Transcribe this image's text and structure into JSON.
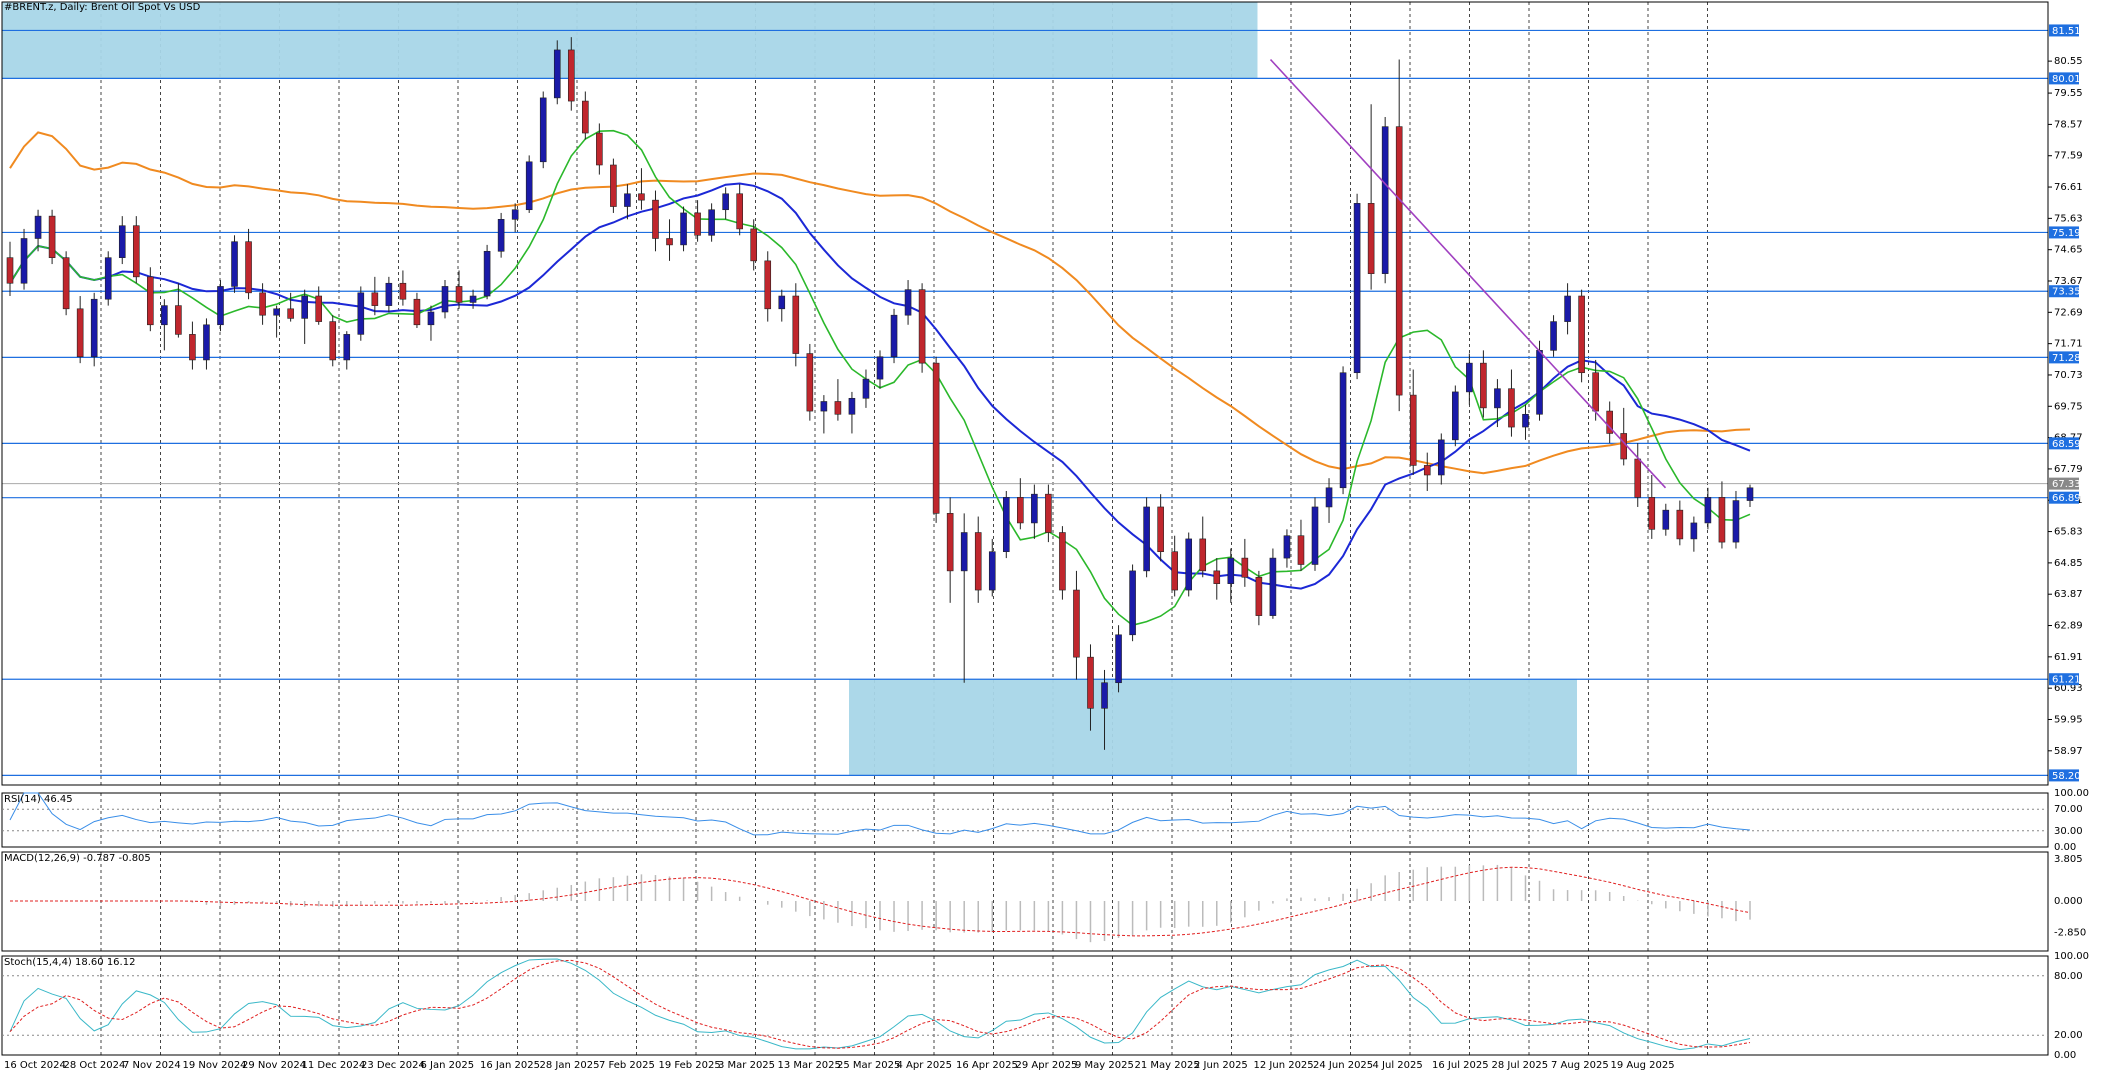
{
  "title": "#BRENT.z, Daily:  Brent Oil Spot Vs USD",
  "indicators": {
    "rsi": "RSI(14) 46.45",
    "macd": "MACD(12,26,9) -0.787 -0.805",
    "stoch": "Stoch(15,4,4) 18.60 16.12"
  },
  "colors": {
    "bull": "#1a1aa8",
    "bear": "#c0262d",
    "ma_short": "#2bb82b",
    "ma_mid": "#1c28d6",
    "ma_long": "#f08a20",
    "trendline": "#a040c0",
    "level": "#1e6fe0",
    "zone": "#a8d6e8",
    "rsi": "#3a8ee8",
    "macd_signal": "#e02020",
    "stoch_main": "#3ab8c8",
    "stoch_signal": "#e02020"
  },
  "chart_data": {
    "type": "candlestick",
    "symbol": "#BRENT.z",
    "timeframe": "Daily",
    "price_axis_ticks": [
      "80.55",
      "79.55",
      "78.57",
      "77.59",
      "76.61",
      "75.63",
      "74.65",
      "73.67",
      "72.69",
      "71.71",
      "70.73",
      "69.75",
      "68.77",
      "67.79",
      "66.81",
      "65.83",
      "64.85",
      "63.87",
      "62.89",
      "61.91",
      "60.93",
      "59.95",
      "58.97"
    ],
    "price_range": [
      57.9,
      82.4
    ],
    "date_labels": [
      "16 Oct 2024",
      "28 Oct 2024",
      "7 Nov 2024",
      "19 Nov 2024",
      "29 Nov 2024",
      "11 Dec 2024",
      "23 Dec 2024",
      "6 Jan 2025",
      "16 Jan 2025",
      "28 Jan 2025",
      "7 Feb 2025",
      "19 Feb 2025",
      "3 Mar 2025",
      "13 Mar 2025",
      "25 Mar 2025",
      "4 Apr 2025",
      "16 Apr 2025",
      "29 Apr 2025",
      "9 May 2025",
      "21 May 2025",
      "2 Jun 2025",
      "12 Jun 2025",
      "24 Jun 2025",
      "4 Jul 2025",
      "16 Jul 2025",
      "28 Jul 2025",
      "7 Aug 2025",
      "19 Aug 2025"
    ],
    "horizontal_levels": [
      81.51,
      80.01,
      75.19,
      73.35,
      71.28,
      68.59,
      66.89,
      61.21,
      58.2
    ],
    "current_price": 67.33,
    "zones": [
      {
        "from_date": "16 Oct 2024",
        "to_date": "12 Jun 2025",
        "low": 80.01,
        "high": 82.4
      },
      {
        "from_date": "25 Mar 2025",
        "to_date": "7 Aug 2025",
        "low": 58.2,
        "high": 61.21
      }
    ],
    "trendline": [
      {
        "date": "12 Jun 2025",
        "price": 80.6
      },
      {
        "date": "19 Aug 2025",
        "price": 67.2
      }
    ],
    "candles_o_h_l_c": [
      [
        74.4,
        74.9,
        73.2,
        73.6
      ],
      [
        73.6,
        75.3,
        73.4,
        75.0
      ],
      [
        75.0,
        75.9,
        74.6,
        75.7
      ],
      [
        75.7,
        75.9,
        74.2,
        74.4
      ],
      [
        74.4,
        74.6,
        72.6,
        72.8
      ],
      [
        72.8,
        73.2,
        71.1,
        71.3
      ],
      [
        71.3,
        73.3,
        71.0,
        73.1
      ],
      [
        73.1,
        74.6,
        72.9,
        74.4
      ],
      [
        74.4,
        75.7,
        74.2,
        75.4
      ],
      [
        75.4,
        75.7,
        73.6,
        73.8
      ],
      [
        73.8,
        74.1,
        72.1,
        72.3
      ],
      [
        72.3,
        73.1,
        71.5,
        72.9
      ],
      [
        72.9,
        73.6,
        71.9,
        72.0
      ],
      [
        72.0,
        72.4,
        70.9,
        71.2
      ],
      [
        71.2,
        72.5,
        70.9,
        72.3
      ],
      [
        72.3,
        73.7,
        72.1,
        73.5
      ],
      [
        73.5,
        75.1,
        73.3,
        74.9
      ],
      [
        74.9,
        75.3,
        73.1,
        73.3
      ],
      [
        73.3,
        73.6,
        72.3,
        72.6
      ],
      [
        72.6,
        72.9,
        71.9,
        72.8
      ],
      [
        72.8,
        73.3,
        72.4,
        72.5
      ],
      [
        72.5,
        73.4,
        71.7,
        73.2
      ],
      [
        73.2,
        73.5,
        72.3,
        72.4
      ],
      [
        72.4,
        72.6,
        71.0,
        71.2
      ],
      [
        71.2,
        72.1,
        70.9,
        72.0
      ],
      [
        72.0,
        73.5,
        71.8,
        73.3
      ],
      [
        73.3,
        73.8,
        72.6,
        72.9
      ],
      [
        72.9,
        73.8,
        72.7,
        73.6
      ],
      [
        73.6,
        74.0,
        72.9,
        73.1
      ],
      [
        73.1,
        73.3,
        72.2,
        72.3
      ],
      [
        72.3,
        72.9,
        71.8,
        72.7
      ],
      [
        72.7,
        73.7,
        72.5,
        73.5
      ],
      [
        73.5,
        74.0,
        72.8,
        73.0
      ],
      [
        73.0,
        73.4,
        72.8,
        73.2
      ],
      [
        73.2,
        74.8,
        73.1,
        74.6
      ],
      [
        74.6,
        75.8,
        74.4,
        75.6
      ],
      [
        75.6,
        76.1,
        75.2,
        75.9
      ],
      [
        75.9,
        77.6,
        75.8,
        77.4
      ],
      [
        77.4,
        79.6,
        77.2,
        79.4
      ],
      [
        79.4,
        81.2,
        79.2,
        80.9
      ],
      [
        80.9,
        81.3,
        79.0,
        79.3
      ],
      [
        79.3,
        79.6,
        78.1,
        78.3
      ],
      [
        78.3,
        78.6,
        77.0,
        77.3
      ],
      [
        77.3,
        77.5,
        75.8,
        76.0
      ],
      [
        76.0,
        76.7,
        75.6,
        76.4
      ],
      [
        76.4,
        77.2,
        75.9,
        76.2
      ],
      [
        76.2,
        76.5,
        74.6,
        75.0
      ],
      [
        75.0,
        75.6,
        74.3,
        74.8
      ],
      [
        74.8,
        76.0,
        74.6,
        75.8
      ],
      [
        75.8,
        76.2,
        74.9,
        75.1
      ],
      [
        75.1,
        76.1,
        74.9,
        75.9
      ],
      [
        75.9,
        76.6,
        75.6,
        76.4
      ],
      [
        76.4,
        76.7,
        75.1,
        75.3
      ],
      [
        75.3,
        75.6,
        74.0,
        74.3
      ],
      [
        74.3,
        74.6,
        72.4,
        72.8
      ],
      [
        72.8,
        73.4,
        72.4,
        73.2
      ],
      [
        73.2,
        73.6,
        71.0,
        71.4
      ],
      [
        71.4,
        71.7,
        69.3,
        69.6
      ],
      [
        69.6,
        70.1,
        68.9,
        69.9
      ],
      [
        69.9,
        70.6,
        69.3,
        69.5
      ],
      [
        69.5,
        70.2,
        68.9,
        70.0
      ],
      [
        70.0,
        70.9,
        69.7,
        70.6
      ],
      [
        70.6,
        71.5,
        70.3,
        71.3
      ],
      [
        71.3,
        72.8,
        71.1,
        72.6
      ],
      [
        72.6,
        73.7,
        72.3,
        73.4
      ],
      [
        73.4,
        73.6,
        70.8,
        71.1
      ],
      [
        71.1,
        71.3,
        66.1,
        66.4
      ],
      [
        66.4,
        66.9,
        63.6,
        64.6
      ],
      [
        64.6,
        66.4,
        61.1,
        65.8
      ],
      [
        65.8,
        66.3,
        63.6,
        64.0
      ],
      [
        64.0,
        65.6,
        63.8,
        65.2
      ],
      [
        65.2,
        67.1,
        65.0,
        66.9
      ],
      [
        66.9,
        67.5,
        65.9,
        66.1
      ],
      [
        66.1,
        67.3,
        65.6,
        67.0
      ],
      [
        67.0,
        67.3,
        65.5,
        65.8
      ],
      [
        65.8,
        66.0,
        63.7,
        64.0
      ],
      [
        64.0,
        64.6,
        61.2,
        61.9
      ],
      [
        61.9,
        62.3,
        59.6,
        60.3
      ],
      [
        60.3,
        61.5,
        59.0,
        61.1
      ],
      [
        61.1,
        62.9,
        60.8,
        62.6
      ],
      [
        62.6,
        64.8,
        62.4,
        64.6
      ],
      [
        64.6,
        66.9,
        64.4,
        66.6
      ],
      [
        66.6,
        67.0,
        64.9,
        65.2
      ],
      [
        65.2,
        65.7,
        63.8,
        64.0
      ],
      [
        64.0,
        65.8,
        63.8,
        65.6
      ],
      [
        65.6,
        66.3,
        64.4,
        64.6
      ],
      [
        64.6,
        65.0,
        63.7,
        64.2
      ],
      [
        64.2,
        65.3,
        63.6,
        65.0
      ],
      [
        65.0,
        65.6,
        64.1,
        64.4
      ],
      [
        64.4,
        64.6,
        62.9,
        63.2
      ],
      [
        63.2,
        65.3,
        63.1,
        65.0
      ],
      [
        65.0,
        65.9,
        64.7,
        65.7
      ],
      [
        65.7,
        66.2,
        64.6,
        64.8
      ],
      [
        64.8,
        66.9,
        64.6,
        66.6
      ],
      [
        66.6,
        67.5,
        66.1,
        67.2
      ],
      [
        67.2,
        71.0,
        67.0,
        70.8
      ],
      [
        70.8,
        76.4,
        70.6,
        76.1
      ],
      [
        76.1,
        79.2,
        73.4,
        73.9
      ],
      [
        73.9,
        78.8,
        73.6,
        78.5
      ],
      [
        78.5,
        80.6,
        69.6,
        70.1
      ],
      [
        70.1,
        70.9,
        67.6,
        67.9
      ],
      [
        67.9,
        68.3,
        67.1,
        67.6
      ],
      [
        67.6,
        68.9,
        67.3,
        68.7
      ],
      [
        68.7,
        70.4,
        68.5,
        70.2
      ],
      [
        70.2,
        71.4,
        69.8,
        71.1
      ],
      [
        71.1,
        71.5,
        69.4,
        69.7
      ],
      [
        69.7,
        70.6,
        69.1,
        70.3
      ],
      [
        70.3,
        70.9,
        68.8,
        69.1
      ],
      [
        69.1,
        69.8,
        68.7,
        69.5
      ],
      [
        69.5,
        71.8,
        69.3,
        71.5
      ],
      [
        71.5,
        72.6,
        71.3,
        72.4
      ],
      [
        72.4,
        73.6,
        72.0,
        73.2
      ],
      [
        73.2,
        73.4,
        70.5,
        70.8
      ],
      [
        70.8,
        71.2,
        69.3,
        69.6
      ],
      [
        69.6,
        69.9,
        68.6,
        68.9
      ],
      [
        68.9,
        69.7,
        67.9,
        68.1
      ],
      [
        68.1,
        68.6,
        66.6,
        66.9
      ],
      [
        66.9,
        67.6,
        65.6,
        65.9
      ],
      [
        65.9,
        66.7,
        65.7,
        66.5
      ],
      [
        66.5,
        66.8,
        65.4,
        65.6
      ],
      [
        65.6,
        66.3,
        65.2,
        66.1
      ],
      [
        66.1,
        67.2,
        65.9,
        66.9
      ],
      [
        66.9,
        67.4,
        65.3,
        65.5
      ],
      [
        65.5,
        67.1,
        65.3,
        66.8
      ],
      [
        66.8,
        67.3,
        66.6,
        67.2
      ]
    ]
  }
}
